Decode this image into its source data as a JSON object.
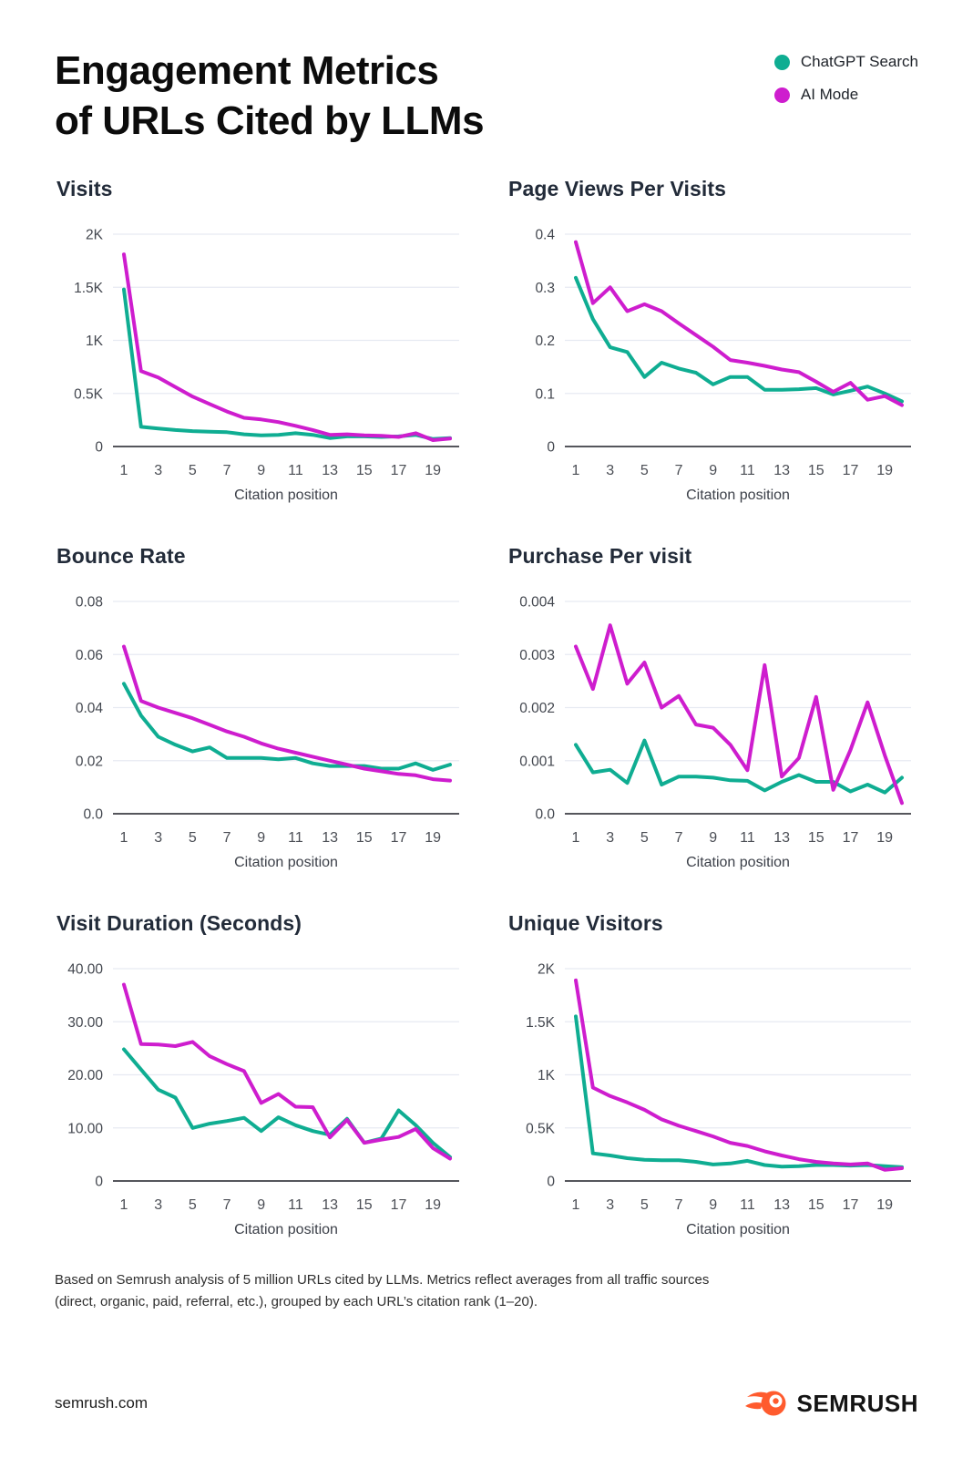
{
  "title_line1": "Engagement Metrics",
  "title_line2": "of URLs Cited by LLMs",
  "colors": {
    "chatgpt": "#0FAD92",
    "aimode": "#CE1DCE"
  },
  "legend": [
    {
      "label": "ChatGPT Search",
      "color_key": "chatgpt"
    },
    {
      "label": "AI Mode",
      "color_key": "aimode"
    }
  ],
  "footnote_line1": "Based on Semrush analysis of 5 million URLs cited by LLMs. Metrics reflect averages from all traffic sources",
  "footnote_line2": "(direct, organic, paid, referral, etc.), grouped by each URL’s citation rank (1–20).",
  "footer": {
    "site": "semrush.com",
    "logo_text": "SEMRUSH",
    "logo_color": "#FF5B2E"
  },
  "chart_data": [
    {
      "type": "line",
      "title": "Visits",
      "xlabel": "Citation position",
      "x": [
        1,
        2,
        3,
        4,
        5,
        6,
        7,
        8,
        9,
        10,
        11,
        12,
        13,
        14,
        15,
        16,
        17,
        18,
        19,
        20
      ],
      "x_ticks": [
        1,
        3,
        5,
        7,
        9,
        11,
        13,
        15,
        17,
        19
      ],
      "ylim": [
        0,
        2000
      ],
      "yticks": [
        {
          "v": 0,
          "label": "0"
        },
        {
          "v": 500,
          "label": "0.5K"
        },
        {
          "v": 1000,
          "label": "1K"
        },
        {
          "v": 1500,
          "label": "1.5K"
        },
        {
          "v": 2000,
          "label": "2K"
        }
      ],
      "series": [
        {
          "name": "ChatGPT Search",
          "color_key": "chatgpt",
          "values": [
            1480,
            185,
            170,
            155,
            145,
            140,
            135,
            115,
            105,
            110,
            125,
            110,
            80,
            95,
            95,
            90,
            95,
            110,
            70,
            80
          ]
        },
        {
          "name": "AI Mode",
          "color_key": "aimode",
          "values": [
            1810,
            710,
            650,
            560,
            470,
            400,
            330,
            270,
            255,
            230,
            195,
            155,
            110,
            115,
            105,
            100,
            90,
            125,
            60,
            75
          ]
        }
      ]
    },
    {
      "type": "line",
      "title": "Page Views Per Visits",
      "xlabel": "Citation position",
      "x": [
        1,
        2,
        3,
        4,
        5,
        6,
        7,
        8,
        9,
        10,
        11,
        12,
        13,
        14,
        15,
        16,
        17,
        18,
        19,
        20
      ],
      "x_ticks": [
        1,
        3,
        5,
        7,
        9,
        11,
        13,
        15,
        17,
        19
      ],
      "ylim": [
        0,
        0.4
      ],
      "yticks": [
        {
          "v": 0,
          "label": "0"
        },
        {
          "v": 0.1,
          "label": "0.1"
        },
        {
          "v": 0.2,
          "label": "0.2"
        },
        {
          "v": 0.3,
          "label": "0.3"
        },
        {
          "v": 0.4,
          "label": "0.4"
        }
      ],
      "series": [
        {
          "name": "ChatGPT Search",
          "color_key": "chatgpt",
          "values": [
            0.318,
            0.24,
            0.187,
            0.178,
            0.131,
            0.158,
            0.147,
            0.139,
            0.117,
            0.131,
            0.131,
            0.107,
            0.107,
            0.108,
            0.11,
            0.098,
            0.105,
            0.113,
            0.1,
            0.085
          ]
        },
        {
          "name": "AI Mode",
          "color_key": "aimode",
          "values": [
            0.385,
            0.27,
            0.3,
            0.255,
            0.268,
            0.255,
            0.232,
            0.21,
            0.188,
            0.163,
            0.158,
            0.152,
            0.145,
            0.14,
            0.122,
            0.103,
            0.12,
            0.088,
            0.095,
            0.078
          ]
        }
      ]
    },
    {
      "type": "line",
      "title": "Bounce Rate",
      "xlabel": "Citation position",
      "x": [
        1,
        2,
        3,
        4,
        5,
        6,
        7,
        8,
        9,
        10,
        11,
        12,
        13,
        14,
        15,
        16,
        17,
        18,
        19,
        20
      ],
      "x_ticks": [
        1,
        3,
        5,
        7,
        9,
        11,
        13,
        15,
        17,
        19
      ],
      "ylim": [
        0,
        0.08
      ],
      "yticks": [
        {
          "v": 0,
          "label": "0.0"
        },
        {
          "v": 0.02,
          "label": "0.02"
        },
        {
          "v": 0.04,
          "label": "0.04"
        },
        {
          "v": 0.06,
          "label": "0.06"
        },
        {
          "v": 0.08,
          "label": "0.08"
        }
      ],
      "series": [
        {
          "name": "ChatGPT Search",
          "color_key": "chatgpt",
          "values": [
            0.049,
            0.037,
            0.029,
            0.026,
            0.0235,
            0.025,
            0.021,
            0.021,
            0.021,
            0.0205,
            0.021,
            0.019,
            0.018,
            0.018,
            0.018,
            0.017,
            0.017,
            0.019,
            0.0165,
            0.0185
          ]
        },
        {
          "name": "AI Mode",
          "color_key": "aimode",
          "values": [
            0.063,
            0.0425,
            0.04,
            0.038,
            0.036,
            0.0335,
            0.031,
            0.029,
            0.0265,
            0.0245,
            0.023,
            0.0215,
            0.02,
            0.0185,
            0.017,
            0.016,
            0.015,
            0.0145,
            0.013,
            0.0125
          ]
        }
      ]
    },
    {
      "type": "line",
      "title": "Purchase Per visit",
      "xlabel": "Citation position",
      "x": [
        1,
        2,
        3,
        4,
        5,
        6,
        7,
        8,
        9,
        10,
        11,
        12,
        13,
        14,
        15,
        16,
        17,
        18,
        19,
        20
      ],
      "x_ticks": [
        1,
        3,
        5,
        7,
        9,
        11,
        13,
        15,
        17,
        19
      ],
      "ylim": [
        0,
        0.004
      ],
      "yticks": [
        {
          "v": 0,
          "label": "0.0"
        },
        {
          "v": 0.001,
          "label": "0.001"
        },
        {
          "v": 0.002,
          "label": "0.002"
        },
        {
          "v": 0.003,
          "label": "0.003"
        },
        {
          "v": 0.004,
          "label": "0.004"
        }
      ],
      "series": [
        {
          "name": "ChatGPT Search",
          "color_key": "chatgpt",
          "values": [
            0.0013,
            0.00078,
            0.00083,
            0.00058,
            0.00138,
            0.00055,
            0.0007,
            0.0007,
            0.00068,
            0.00063,
            0.00062,
            0.00044,
            0.0006,
            0.00073,
            0.0006,
            0.0006,
            0.00042,
            0.00055,
            0.0004,
            0.00068
          ]
        },
        {
          "name": "AI Mode",
          "color_key": "aimode",
          "values": [
            0.00315,
            0.00235,
            0.00355,
            0.00245,
            0.00285,
            0.002,
            0.00222,
            0.00168,
            0.00162,
            0.0013,
            0.00082,
            0.0028,
            0.0007,
            0.00105,
            0.0022,
            0.00045,
            0.0012,
            0.0021,
            0.0011,
            0.0002
          ]
        }
      ]
    },
    {
      "type": "line",
      "title": "Visit Duration (Seconds)",
      "xlabel": "Citation position",
      "x": [
        1,
        2,
        3,
        4,
        5,
        6,
        7,
        8,
        9,
        10,
        11,
        12,
        13,
        14,
        15,
        16,
        17,
        18,
        19,
        20
      ],
      "x_ticks": [
        1,
        3,
        5,
        7,
        9,
        11,
        13,
        15,
        17,
        19
      ],
      "ylim": [
        0,
        40
      ],
      "yticks": [
        {
          "v": 0,
          "label": "0"
        },
        {
          "v": 10,
          "label": "10.00"
        },
        {
          "v": 20,
          "label": "20.00"
        },
        {
          "v": 30,
          "label": "30.00"
        },
        {
          "v": 40,
          "label": "40.00"
        }
      ],
      "series": [
        {
          "name": "ChatGPT Search",
          "color_key": "chatgpt",
          "values": [
            24.8,
            21,
            17.2,
            15.7,
            10,
            10.8,
            11.3,
            11.9,
            9.4,
            12,
            10.5,
            9.4,
            8.7,
            11.7,
            7.2,
            8,
            13.3,
            10.5,
            7.2,
            4.5
          ]
        },
        {
          "name": "AI Mode",
          "color_key": "aimode",
          "values": [
            37,
            25.8,
            25.7,
            25.4,
            26.2,
            23.5,
            22,
            20.7,
            14.7,
            16.4,
            14,
            13.9,
            8.2,
            11.5,
            7.2,
            7.8,
            8.3,
            9.8,
            6.2,
            4.2
          ]
        }
      ]
    },
    {
      "type": "line",
      "title": "Unique Visitors",
      "xlabel": "Citation position",
      "x": [
        1,
        2,
        3,
        4,
        5,
        6,
        7,
        8,
        9,
        10,
        11,
        12,
        13,
        14,
        15,
        16,
        17,
        18,
        19,
        20
      ],
      "x_ticks": [
        1,
        3,
        5,
        7,
        9,
        11,
        13,
        15,
        17,
        19
      ],
      "ylim": [
        0,
        2000
      ],
      "yticks": [
        {
          "v": 0,
          "label": "0"
        },
        {
          "v": 500,
          "label": "0.5K"
        },
        {
          "v": 1000,
          "label": "1K"
        },
        {
          "v": 1500,
          "label": "1.5K"
        },
        {
          "v": 2000,
          "label": "2K"
        }
      ],
      "series": [
        {
          "name": "ChatGPT Search",
          "color_key": "chatgpt",
          "values": [
            1550,
            260,
            240,
            215,
            200,
            195,
            195,
            180,
            155,
            165,
            190,
            150,
            135,
            140,
            150,
            150,
            145,
            150,
            140,
            130
          ]
        },
        {
          "name": "AI Mode",
          "color_key": "aimode",
          "values": [
            1890,
            880,
            800,
            740,
            670,
            580,
            520,
            470,
            420,
            360,
            330,
            280,
            240,
            205,
            180,
            165,
            155,
            165,
            105,
            120
          ]
        }
      ]
    }
  ]
}
